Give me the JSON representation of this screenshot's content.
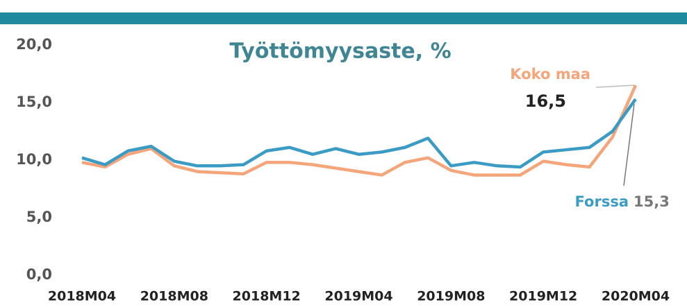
{
  "chart_data": {
    "type": "line",
    "title": "Työttömyysaste, %",
    "categories": [
      "2018M04",
      null,
      null,
      null,
      "2018M08",
      null,
      null,
      null,
      "2018M12",
      null,
      null,
      null,
      "2019M04",
      null,
      null,
      null,
      "2019M08",
      null,
      null,
      null,
      "2019M12",
      null,
      null,
      null,
      "2020M04"
    ],
    "series": [
      {
        "name": "Koko maa",
        "color": "#f4a57a",
        "values": [
          9.8,
          9.4,
          10.5,
          11.0,
          9.5,
          9.0,
          8.9,
          8.8,
          9.8,
          9.8,
          9.6,
          9.3,
          9.0,
          8.7,
          9.8,
          10.2,
          9.1,
          8.7,
          8.7,
          8.7,
          9.9,
          9.6,
          9.4,
          12.0,
          16.5
        ],
        "value_labels": [
          null,
          null,
          null,
          null,
          null,
          null,
          null,
          null,
          null,
          null,
          null,
          null,
          null,
          null,
          null,
          null,
          null,
          null,
          null,
          null,
          null,
          null,
          null,
          null,
          "16,5"
        ]
      },
      {
        "name": "Forssa",
        "color": "#3a9cc4",
        "values": [
          10.2,
          9.6,
          10.8,
          11.2,
          9.9,
          9.5,
          9.5,
          9.6,
          10.8,
          11.1,
          10.5,
          11.0,
          10.5,
          10.7,
          11.1,
          11.9,
          9.5,
          9.8,
          9.5,
          9.4,
          10.7,
          10.9,
          11.1,
          12.5,
          15.3
        ],
        "value_labels": [
          null,
          null,
          null,
          null,
          null,
          null,
          null,
          null,
          null,
          null,
          null,
          null,
          null,
          null,
          null,
          null,
          null,
          null,
          null,
          null,
          null,
          null,
          null,
          null,
          "15,3"
        ]
      }
    ],
    "ylim": [
      0,
      20
    ],
    "yticks": [
      {
        "value": 0,
        "label": "0,0"
      },
      {
        "value": 5,
        "label": "5,0"
      },
      {
        "value": 10,
        "label": "10,0"
      },
      {
        "value": 15,
        "label": "15,0"
      },
      {
        "value": 20,
        "label": "20,0"
      }
    ],
    "grid": false
  }
}
